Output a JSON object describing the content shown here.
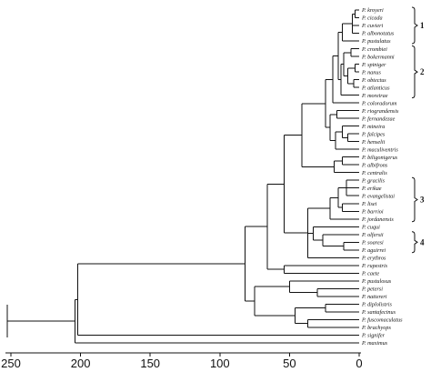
{
  "chart_data": {
    "type": "dendrogram",
    "title": "",
    "xlabel": "",
    "axis": {
      "ticks": [
        250,
        200,
        150,
        100,
        50,
        0
      ],
      "tick_labels": [
        "250",
        "200",
        "150",
        "100",
        "50",
        "0"
      ],
      "range": [
        270,
        0
      ],
      "direction": "reversed"
    },
    "leaves": [
      "P. kroyeri",
      "P. cicada",
      "P. cuvieri",
      "P. albonotatus",
      "P. pustulatus",
      "P. crombiei",
      "P. bokermanni",
      "P. spiniger",
      "P. nanus",
      "P. obtectus",
      "P. atlanticus",
      "P. moreirae",
      "P. coloradorum",
      "P. riograndensis",
      "P. fernandezae",
      "P. mineira",
      "P. falcipes",
      "P. henselii",
      "P. maculiventris",
      "P. biligonigerus",
      "P. albifrons",
      "P. centralis",
      "P. gracilis",
      "P. erikae",
      "P. evangelistai",
      "P. lisei",
      "P. barrioi",
      "P. jordanensis",
      "P. cuqui",
      "P. olfersii",
      "P. soaresi",
      "P. aguirrei",
      "P. erythros",
      "P. rupestris",
      "P. caete",
      "P. pustulosus",
      "P. petersi",
      "P. nattereri",
      "P. diplolistris",
      "P. santafecinus",
      "P. fuscomaculatus",
      "P. brachyops",
      "P. signifer",
      "P. maximus"
    ],
    "tree": {
      "h": 204,
      "c": [
        {
          "h": 202,
          "c": [
            {
              "h": 82,
              "c": [
                {
                  "h": 66,
                  "c": [
                    {
                      "h": 54,
                      "c": [
                        {
                          "h": 41,
                          "c": [
                            {
                              "h": 24,
                              "c": [
                                {
                                  "h": 19,
                                  "c": [
                                    {
                                      "h": 15,
                                      "c": [
                                        {
                                          "h": 12,
                                          "c": [
                                            {
                                              "h": 5,
                                              "c": [
                                                {
                                                  "h": 3,
                                                  "c": [
                                                    {
                                                      "i": 0
                                                    },
                                                    {
                                                      "i": 1
                                                    }
                                                  ]
                                                },
                                                {
                                                  "i": 2
                                                },
                                                {
                                                  "i": 3
                                                }
                                              ]
                                            },
                                            {
                                              "i": 4
                                            }
                                          ]
                                        },
                                        {
                                          "h": 13,
                                          "c": [
                                            {
                                              "h": 11,
                                              "c": [
                                                {
                                                  "h": 6,
                                                  "c": [
                                                    {
                                                      "i": 5
                                                    },
                                                    {
                                                      "i": 6
                                                    }
                                                  ]
                                                },
                                                {
                                                  "h": 8,
                                                  "c": [
                                                    {
                                                      "h": 3,
                                                      "c": [
                                                        {
                                                          "i": 7
                                                        },
                                                        {
                                                          "i": 8
                                                        }
                                                      ]
                                                    },
                                                    {
                                                      "h": 4,
                                                      "c": [
                                                        {
                                                          "i": 9
                                                        },
                                                        {
                                                          "i": 10
                                                        }
                                                      ]
                                                    }
                                                  ]
                                                }
                                              ]
                                            },
                                            {
                                              "i": 11
                                            }
                                          ]
                                        }
                                      ]
                                    },
                                    {
                                      "i": 12
                                    }
                                  ]
                                },
                                {
                                  "h": 21,
                                  "c": [
                                    {
                                      "h": 16,
                                      "c": [
                                        {
                                          "i": 13
                                        },
                                        {
                                          "i": 14
                                        }
                                      ]
                                    },
                                    {
                                      "h": 17,
                                      "c": [
                                        {
                                          "h": 12,
                                          "c": [
                                            {
                                              "i": 15
                                            },
                                            {
                                              "h": 8,
                                              "c": [
                                                {
                                                  "i": 16
                                                },
                                                {
                                                  "i": 17
                                                }
                                              ]
                                            }
                                          ]
                                        },
                                        {
                                          "i": 18
                                        }
                                      ]
                                    }
                                  ]
                                }
                              ]
                            },
                            {
                              "h": 18,
                              "c": [
                                {
                                  "h": 12,
                                  "c": [
                                    {
                                      "i": 19
                                    },
                                    {
                                      "i": 20
                                    }
                                  ]
                                },
                                {
                                  "i": 21
                                }
                              ]
                            }
                          ]
                        },
                        {
                          "h": 37,
                          "c": [
                            {
                              "h": 21,
                              "c": [
                                {
                                  "h": 15,
                                  "c": [
                                    {
                                      "h": 9,
                                      "c": [
                                        {
                                          "i": 22
                                        },
                                        {
                                          "i": 23
                                        },
                                        {
                                          "i": 24
                                        }
                                      ]
                                    },
                                    {
                                      "h": 12,
                                      "c": [
                                        {
                                          "i": 25
                                        },
                                        {
                                          "i": 26
                                        }
                                      ]
                                    }
                                  ]
                                },
                                {
                                  "i": 27
                                }
                              ]
                            },
                            {
                              "h": 33,
                              "c": [
                                {
                                  "i": 28
                                },
                                {
                                  "h": 26,
                                  "c": [
                                    {
                                      "i": 29
                                    },
                                    {
                                      "h": 11,
                                      "c": [
                                        {
                                          "i": 30
                                        },
                                        {
                                          "i": 31
                                        }
                                      ]
                                    }
                                  ]
                                }
                              ]
                            },
                            {
                              "i": 32
                            }
                          ]
                        }
                      ]
                    },
                    {
                      "h": 54,
                      "c": [
                        {
                          "i": 33
                        },
                        {
                          "i": 34
                        }
                      ]
                    }
                  ]
                },
                {
                  "h": 75,
                  "c": [
                    {
                      "h": 50,
                      "c": [
                        {
                          "i": 35
                        },
                        {
                          "h": 30,
                          "c": [
                            {
                              "i": 36
                            },
                            {
                              "i": 37
                            }
                          ]
                        }
                      ]
                    },
                    {
                      "h": 46,
                      "c": [
                        {
                          "h": 24,
                          "c": [
                            {
                              "i": 38
                            },
                            {
                              "i": 39
                            }
                          ]
                        },
                        {
                          "h": 37,
                          "c": [
                            {
                              "i": 40
                            },
                            {
                              "i": 41
                            }
                          ]
                        }
                      ]
                    }
                  ]
                }
              ]
            },
            {
              "i": 42
            }
          ]
        },
        {
          "i": 43
        }
      ]
    },
    "groups": [
      {
        "label": "1",
        "from": 0,
        "to": 4
      },
      {
        "label": "2",
        "from": 5,
        "to": 11
      },
      {
        "label": "3",
        "from": 22,
        "to": 27
      },
      {
        "label": "4",
        "from": 29,
        "to": 31
      }
    ]
  }
}
